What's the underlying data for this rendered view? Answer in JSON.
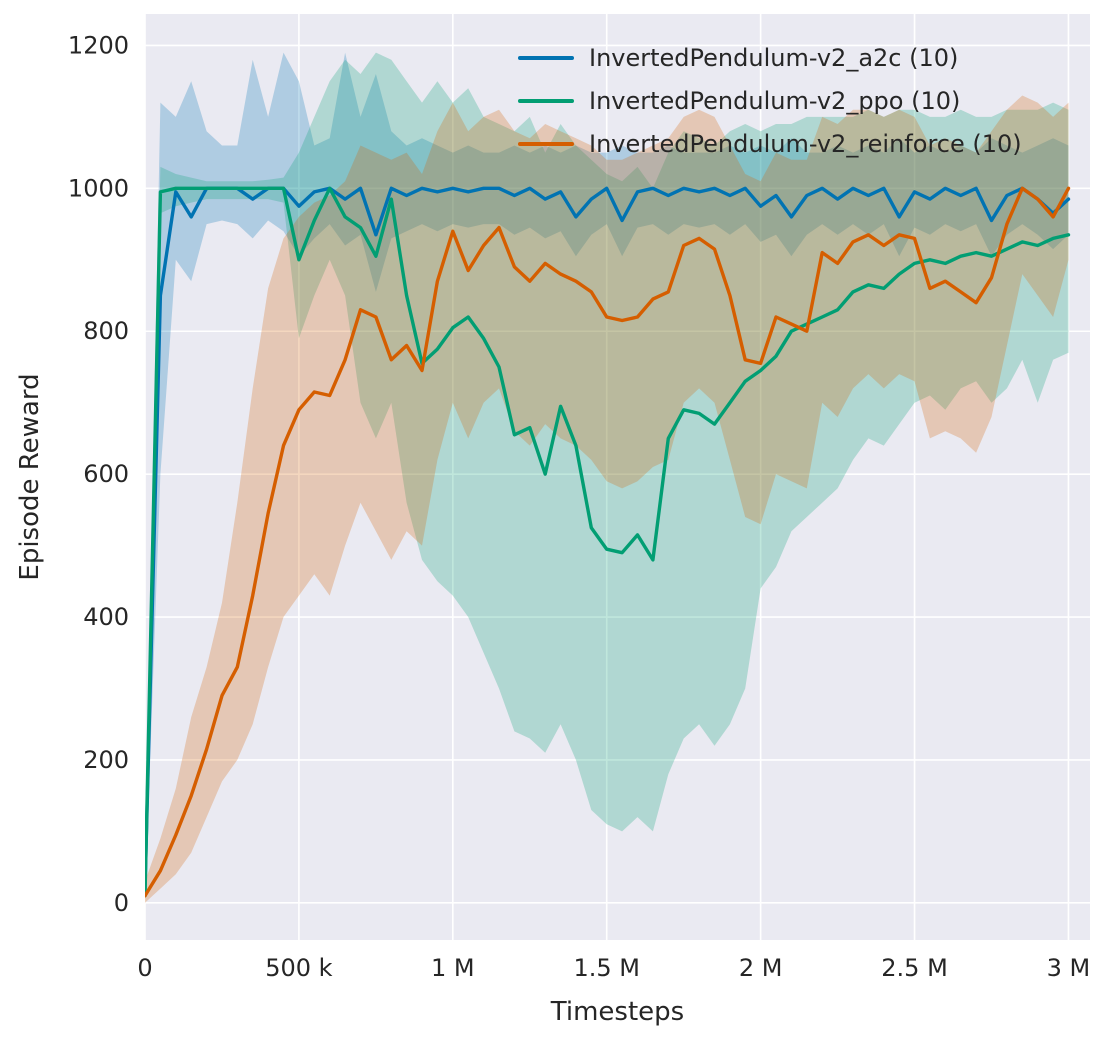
{
  "figure": {
    "xlabel": "Timesteps",
    "ylabel": "Episode Reward"
  },
  "legend": {
    "items": [
      {
        "label": "InvertedPendulum-v2_a2c (10)",
        "color": "#0173b2"
      },
      {
        "label": "InvertedPendulum-v2_ppo (10)",
        "color": "#029e73"
      },
      {
        "label": "InvertedPendulum-v2_reinforce (10)",
        "color": "#d55e00"
      }
    ]
  },
  "style": {
    "plot_bg": "#eaeaf2",
    "grid_color": "#ffffff",
    "text_color": "#262626",
    "band_alpha": 0.25,
    "line_width": 3.4,
    "tick_font_size": 24
  },
  "chart_data": {
    "type": "line",
    "title": "",
    "xlabel": "Timesteps",
    "ylabel": "Episode Reward",
    "grid": true,
    "legend_position": "upper center",
    "xlim": [
      0,
      3070000
    ],
    "ylim": [
      -52,
      1244
    ],
    "xticks": {
      "values": [
        0,
        500000,
        1000000,
        1500000,
        2000000,
        2500000,
        3000000
      ],
      "labels": [
        "0",
        "500 k",
        "1 M",
        "1.5 M",
        "2 M",
        "2.5 M",
        "3 M"
      ]
    },
    "yticks": {
      "values": [
        0,
        200,
        400,
        600,
        800,
        1000,
        1200
      ],
      "labels": [
        "0",
        "200",
        "400",
        "600",
        "800",
        "1000",
        "1200"
      ]
    },
    "x": [
      0,
      50000,
      100000,
      150000,
      200000,
      250000,
      300000,
      350000,
      400000,
      450000,
      500000,
      550000,
      600000,
      650000,
      700000,
      750000,
      800000,
      850000,
      900000,
      950000,
      1000000,
      1050000,
      1100000,
      1150000,
      1200000,
      1250000,
      1300000,
      1350000,
      1400000,
      1450000,
      1500000,
      1550000,
      1600000,
      1650000,
      1700000,
      1750000,
      1800000,
      1850000,
      1900000,
      1950000,
      2000000,
      2050000,
      2100000,
      2150000,
      2200000,
      2250000,
      2300000,
      2350000,
      2400000,
      2450000,
      2500000,
      2550000,
      2600000,
      2650000,
      2700000,
      2750000,
      2800000,
      2850000,
      2900000,
      2950000,
      3000000
    ],
    "series": [
      {
        "key": "a2c",
        "name": "InvertedPendulum-v2_a2c (10)",
        "color": "#0173b2",
        "values": [
          20,
          850,
          995,
          960,
          1000,
          1000,
          1000,
          985,
          1000,
          1000,
          975,
          995,
          1000,
          985,
          1000,
          935,
          1000,
          990,
          1000,
          995,
          1000,
          995,
          1000,
          1000,
          990,
          1000,
          985,
          995,
          960,
          985,
          1000,
          955,
          995,
          1000,
          990,
          1000,
          995,
          1000,
          990,
          1000,
          975,
          990,
          960,
          990,
          1000,
          985,
          1000,
          990,
          1000,
          960,
          995,
          985,
          1000,
          990,
          1000,
          955,
          990,
          1000,
          985,
          965,
          985
        ],
        "band_low": [
          0,
          600,
          900,
          870,
          950,
          955,
          950,
          930,
          955,
          940,
          905,
          930,
          950,
          920,
          935,
          855,
          930,
          940,
          950,
          940,
          950,
          945,
          950,
          950,
          935,
          945,
          930,
          940,
          905,
          935,
          950,
          905,
          945,
          950,
          935,
          950,
          945,
          950,
          935,
          950,
          925,
          935,
          905,
          935,
          950,
          935,
          950,
          935,
          950,
          905,
          945,
          935,
          950,
          940,
          950,
          905,
          935,
          950,
          935,
          915,
          935
        ],
        "band_high": [
          60,
          1120,
          1100,
          1150,
          1080,
          1060,
          1060,
          1180,
          1100,
          1190,
          1150,
          1060,
          1070,
          1190,
          1100,
          1160,
          1080,
          1060,
          1070,
          1060,
          1050,
          1060,
          1050,
          1050,
          1060,
          1050,
          1060,
          1050,
          1060,
          1050,
          1050,
          1060,
          1050,
          1050,
          1060,
          1050,
          1050,
          1050,
          1060,
          1050,
          1060,
          1050,
          1070,
          1050,
          1050,
          1060,
          1050,
          1060,
          1050,
          1070,
          1050,
          1060,
          1050,
          1060,
          1050,
          1070,
          1060,
          1050,
          1060,
          1070,
          1060
        ]
      },
      {
        "key": "ppo",
        "name": "InvertedPendulum-v2_ppo (10)",
        "color": "#029e73",
        "values": [
          10,
          995,
          1000,
          1000,
          1000,
          1000,
          1000,
          1000,
          1000,
          1000,
          900,
          955,
          1000,
          960,
          945,
          905,
          985,
          850,
          755,
          775,
          805,
          820,
          790,
          750,
          655,
          665,
          600,
          695,
          640,
          525,
          495,
          490,
          515,
          480,
          650,
          690,
          685,
          670,
          700,
          730,
          745,
          765,
          800,
          810,
          820,
          830,
          855,
          865,
          860,
          880,
          895,
          900,
          895,
          905,
          910,
          905,
          915,
          925,
          920,
          930,
          935
        ],
        "band_low": [
          0,
          965,
          975,
          980,
          985,
          985,
          985,
          985,
          985,
          980,
          790,
          850,
          900,
          850,
          700,
          650,
          700,
          560,
          480,
          450,
          430,
          400,
          350,
          300,
          240,
          230,
          210,
          250,
          200,
          130,
          110,
          100,
          120,
          100,
          180,
          230,
          250,
          220,
          250,
          300,
          440,
          470,
          520,
          540,
          560,
          580,
          620,
          650,
          640,
          670,
          700,
          710,
          690,
          720,
          730,
          700,
          720,
          760,
          700,
          760,
          770
        ],
        "band_high": [
          55,
          1030,
          1020,
          1015,
          1010,
          1010,
          1010,
          1010,
          1012,
          1015,
          1050,
          1100,
          1150,
          1180,
          1160,
          1190,
          1180,
          1150,
          1120,
          1150,
          1120,
          1140,
          1100,
          1090,
          1080,
          1100,
          1050,
          1090,
          1060,
          1040,
          1020,
          1010,
          1030,
          1000,
          1050,
          1080,
          1070,
          1060,
          1080,
          1090,
          1080,
          1090,
          1090,
          1100,
          1100,
          1100,
          1100,
          1110,
          1100,
          1110,
          1110,
          1100,
          1100,
          1110,
          1100,
          1100,
          1110,
          1110,
          1110,
          1120,
          1110
        ]
      },
      {
        "key": "reinforce",
        "name": "InvertedPendulum-v2_reinforce (10)",
        "color": "#d55e00",
        "values": [
          10,
          45,
          95,
          150,
          215,
          290,
          330,
          430,
          545,
          640,
          690,
          715,
          710,
          760,
          830,
          820,
          760,
          780,
          745,
          870,
          940,
          885,
          920,
          945,
          890,
          870,
          895,
          880,
          870,
          855,
          820,
          815,
          820,
          845,
          855,
          920,
          930,
          915,
          850,
          760,
          755,
          820,
          810,
          800,
          910,
          895,
          925,
          935,
          920,
          935,
          930,
          860,
          870,
          855,
          840,
          875,
          950,
          1000,
          985,
          960,
          1000
        ],
        "band_low": [
          0,
          20,
          40,
          70,
          120,
          170,
          200,
          250,
          330,
          400,
          430,
          460,
          430,
          500,
          560,
          520,
          480,
          520,
          500,
          620,
          700,
          650,
          700,
          720,
          660,
          640,
          670,
          650,
          640,
          620,
          590,
          580,
          590,
          610,
          620,
          700,
          720,
          700,
          620,
          540,
          530,
          600,
          590,
          580,
          700,
          680,
          720,
          740,
          720,
          740,
          730,
          650,
          660,
          650,
          630,
          680,
          780,
          880,
          850,
          820,
          900
        ],
        "band_high": [
          30,
          90,
          160,
          260,
          330,
          420,
          560,
          720,
          860,
          930,
          960,
          980,
          990,
          1010,
          1060,
          1050,
          1040,
          1050,
          1020,
          1080,
          1120,
          1080,
          1100,
          1110,
          1080,
          1070,
          1090,
          1080,
          1070,
          1060,
          1040,
          1040,
          1050,
          1060,
          1070,
          1100,
          1110,
          1100,
          1060,
          1020,
          1010,
          1050,
          1040,
          1040,
          1100,
          1090,
          1110,
          1110,
          1100,
          1110,
          1100,
          1060,
          1070,
          1060,
          1050,
          1080,
          1110,
          1130,
          1120,
          1100,
          1120
        ]
      }
    ]
  }
}
